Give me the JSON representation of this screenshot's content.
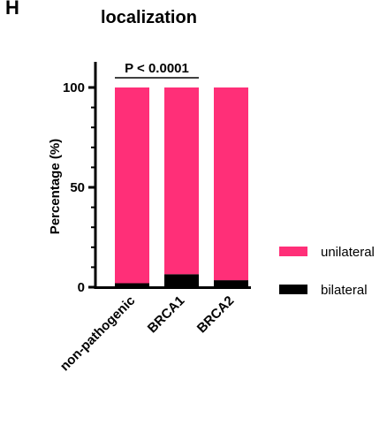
{
  "panel_label": "H",
  "chart_data": {
    "type": "bar",
    "stacked": true,
    "title": "localization",
    "ylabel": "Percentage (%)",
    "xlabel": "",
    "ylim": [
      0,
      100
    ],
    "yticks": [
      0,
      50,
      100
    ],
    "ytick_labels": [
      "0",
      "50",
      "100"
    ],
    "categories": [
      "non-pathogenic",
      "BRCA1",
      "BRCA2"
    ],
    "series": [
      {
        "name": "bilateral",
        "color": "#000000",
        "values": [
          2,
          6.5,
          3.5
        ]
      },
      {
        "name": "unilateral",
        "color": "#ff2f78",
        "values": [
          98,
          93.5,
          96.5
        ]
      }
    ],
    "legend_position": "right",
    "annotation": {
      "text": "P < 0.0001",
      "from_category": 0,
      "to_category": 1
    },
    "grid": false
  }
}
